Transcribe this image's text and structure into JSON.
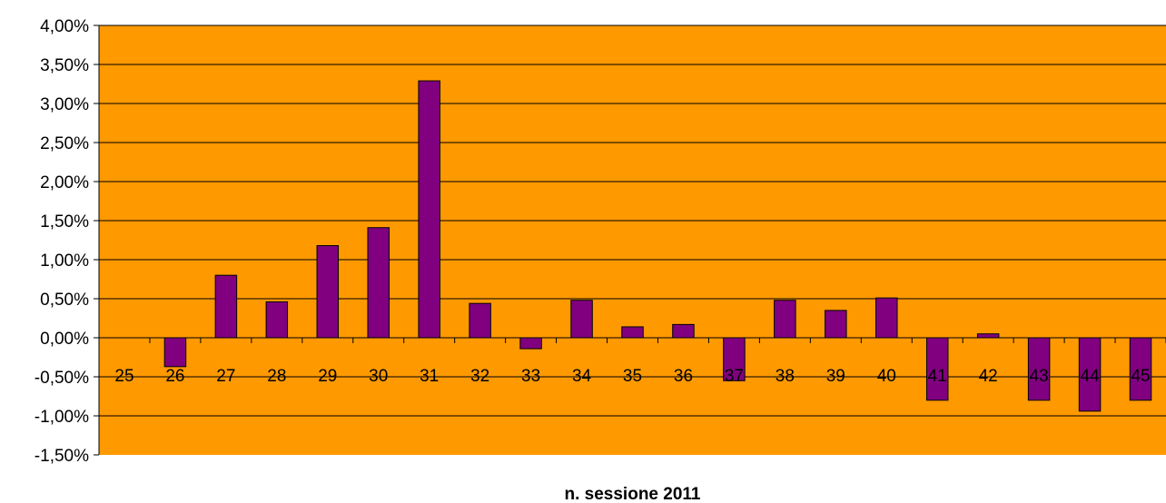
{
  "chart_data": {
    "type": "bar",
    "title": "",
    "xlabel": "n. sessione 2011",
    "ylabel": "",
    "ylim": [
      -0.015,
      0.04
    ],
    "y_ticks": [
      -0.015,
      -0.01,
      -0.005,
      0,
      0.005,
      0.01,
      0.015,
      0.02,
      0.025,
      0.03,
      0.035,
      0.04
    ],
    "y_tick_labels": [
      "-1,50%",
      "-1,00%",
      "-0,50%",
      "0,00%",
      "0,50%",
      "1,00%",
      "1,50%",
      "2,00%",
      "2,50%",
      "3,00%",
      "3,50%",
      "4,00%"
    ],
    "categories": [
      "25",
      "26",
      "27",
      "28",
      "29",
      "30",
      "31",
      "32",
      "33",
      "34",
      "35",
      "36",
      "37",
      "38",
      "39",
      "40",
      "41",
      "42",
      "43",
      "44",
      "45"
    ],
    "values": [
      0,
      -0.0037,
      0.008,
      0.0046,
      0.0118,
      0.0141,
      0.0329,
      0.0044,
      -0.0014,
      0.0048,
      0.0014,
      0.0017,
      -0.0055,
      0.0048,
      0.0035,
      0.0051,
      -0.008,
      0.0005,
      -0.008,
      -0.0094,
      -0.008
    ],
    "grid": true,
    "legend": "none",
    "colors": {
      "plot_background": "#FF9900",
      "bar_fill": "#800080",
      "bar_stroke": "#000000",
      "gridline": "#000000",
      "axis": "#000000"
    }
  }
}
